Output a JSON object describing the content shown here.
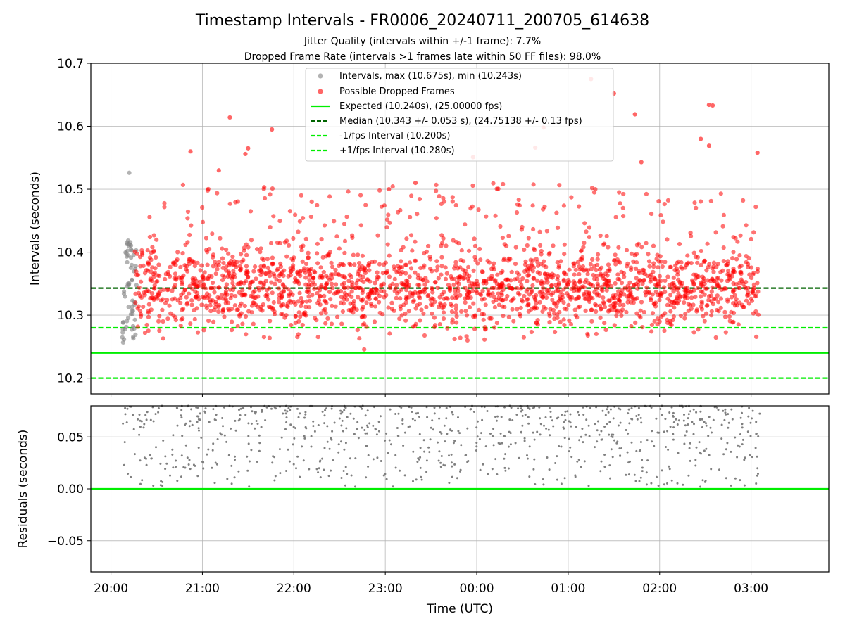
{
  "figure": {
    "title": "Timestamp Intervals - FR0006_20240711_200705_614638",
    "subtitle_1": "Jitter Quality (intervals within +/-1 frame): 7.7%",
    "subtitle_2": "Dropped Frame Rate (intervals >1 frames late within 50 FF files): 98.0%"
  },
  "colors": {
    "gray_points": "#808080",
    "red_points": "#ff0000",
    "expected": "#00ee00",
    "median": "#006400",
    "interval": "#00ee00",
    "grid": "#b0b0b0"
  },
  "chart_data": [
    {
      "type": "scatter",
      "xlabel": "",
      "ylabel": "Intervals (seconds)",
      "x_unit": "hours since 20:00 UTC",
      "xlim": [
        -0.22,
        7.85
      ],
      "ylim": [
        10.175,
        10.7
      ],
      "yticks": [
        10.2,
        10.3,
        10.4,
        10.5,
        10.6,
        10.7
      ],
      "ytick_labels": [
        "10.2",
        "10.3",
        "10.4",
        "10.5",
        "10.6",
        "10.7"
      ],
      "grid": true,
      "legend_position": "upper center",
      "reference_lines": [
        {
          "name": "Expected (10.240s), (25.00000 fps)",
          "y": 10.24,
          "style": "solid",
          "color": "#00ee00"
        },
        {
          "name": "Median (10.343 +/- 0.053 s), (24.75138 +/- 0.13 fps)",
          "y": 10.343,
          "style": "dashed",
          "color": "#006400"
        },
        {
          "name": "-1/fps Interval (10.200s)",
          "y": 10.2,
          "style": "dashed",
          "color": "#00ee00"
        },
        {
          "name": "+1/fps Interval (10.280s)",
          "y": 10.28,
          "style": "dashed",
          "color": "#00ee00"
        }
      ],
      "series": [
        {
          "name": "Intervals, max (10.675s), min (10.243s)",
          "color": "#808080",
          "x_range": [
            0.12,
            0.28
          ],
          "y_range": [
            10.248,
            10.42
          ],
          "outliers": [
            {
              "x": 0.2,
              "y": 10.526
            }
          ]
        },
        {
          "name": "Possible Dropped Frames",
          "color": "#ff0000",
          "x_range": [
            0.26,
            7.08
          ],
          "typical_y_range": [
            10.243,
            10.48
          ],
          "outliers": [
            {
              "x": 0.87,
              "y": 10.56
            },
            {
              "x": 1.3,
              "y": 10.614
            },
            {
              "x": 1.47,
              "y": 10.556
            },
            {
              "x": 1.5,
              "y": 10.565
            },
            {
              "x": 1.76,
              "y": 10.595
            },
            {
              "x": 1.18,
              "y": 10.53
            },
            {
              "x": 3.04,
              "y": 10.5
            },
            {
              "x": 3.33,
              "y": 10.51
            },
            {
              "x": 4.73,
              "y": 10.598
            },
            {
              "x": 4.64,
              "y": 10.566
            },
            {
              "x": 5.25,
              "y": 10.675
            },
            {
              "x": 5.5,
              "y": 10.652
            },
            {
              "x": 5.73,
              "y": 10.619
            },
            {
              "x": 6.54,
              "y": 10.634
            },
            {
              "x": 6.58,
              "y": 10.633
            },
            {
              "x": 6.45,
              "y": 10.58
            },
            {
              "x": 6.54,
              "y": 10.569
            },
            {
              "x": 5.8,
              "y": 10.543
            },
            {
              "x": 7.07,
              "y": 10.558
            },
            {
              "x": 3.96,
              "y": 10.551
            }
          ]
        }
      ]
    },
    {
      "type": "scatter",
      "xlabel": "Time (UTC)",
      "ylabel": "Residuals (seconds)",
      "xlim": [
        -0.22,
        7.85
      ],
      "ylim": [
        -0.08,
        0.08
      ],
      "yticks": [
        -0.05,
        0.0,
        0.05
      ],
      "ytick_labels": [
        "−0.05",
        "0.00",
        "0.05"
      ],
      "xticks": [
        0,
        1,
        2,
        3,
        4,
        5,
        6,
        7
      ],
      "xtick_labels": [
        "20:00",
        "21:00",
        "22:00",
        "23:00",
        "00:00",
        "01:00",
        "02:00",
        "03:00"
      ],
      "grid": true,
      "reference_lines": [
        {
          "y": 0.0,
          "style": "solid",
          "color": "#00ee00"
        }
      ],
      "series": [
        {
          "name": "",
          "color": "#808080",
          "x_range": [
            0.12,
            7.1
          ],
          "y_range": [
            0.002,
            0.08
          ]
        }
      ]
    }
  ]
}
